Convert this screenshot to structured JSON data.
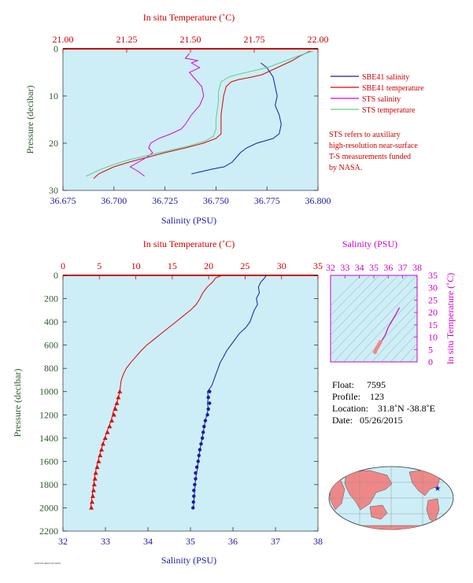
{
  "colors": {
    "plot_bg": "#cdeef7",
    "sbe_salinity": "#1a1aa6",
    "sbe_temperature": "#e00000",
    "sts_salinity": "#dd00dd",
    "sts_temperature": "#66cc88",
    "axis_red": "#cc0000",
    "axis_blue": "#1a1aa6",
    "axis_magenta": "#cc00cc",
    "axis_green": "#2d5a2d"
  },
  "top_panel": {
    "temp_axis_title": "In situ Temperature (˚C)",
    "salinity_axis_title": "Salinity (PSU)",
    "pressure_axis_title": "Pressure (decibar)"
  },
  "legend": {
    "items": [
      {
        "label": "SBE41 salinity",
        "color_key": "sbe_salinity"
      },
      {
        "label": "SBE41 temperature",
        "color_key": "sbe_temperature"
      },
      {
        "label": "STS salinity",
        "color_key": "sts_salinity"
      },
      {
        "label": "STS temperature",
        "color_key": "sts_temperature"
      }
    ],
    "note_lines": [
      "STS refers to auxiliary",
      "high-resolution near-surface",
      "T-S measurements funded",
      "by NASA."
    ]
  },
  "bottom_panel": {
    "temp_axis_title": "In situ Temperature (˚C)",
    "salinity_axis_title": "Salinity (PSU)",
    "pressure_axis_title": "Pressure (decibar)"
  },
  "ts_panel": {
    "salinity_axis_title": "Salinity (PSU)",
    "temp_axis_title": "In situ Temperature (˚C)"
  },
  "info": {
    "float_label": "Float:",
    "float_value": "7595",
    "profile_label": "Profile:",
    "profile_value": "123",
    "location_label": "Location:",
    "location_value": "31.8˚N  -38.8˚E",
    "date_label": "Date:",
    "date_value": "05/26/2015"
  },
  "footer_text": "POSTSCRIPT ID 6508",
  "chart_data": [
    {
      "type": "line",
      "id": "near-surface-profile",
      "ylabel": "Pressure (decibar)",
      "ylim": [
        30,
        0
      ],
      "y_ticks": [
        0,
        10,
        20,
        30
      ],
      "x_bottom": {
        "label": "Salinity (PSU)",
        "lim": [
          36.675,
          36.8
        ],
        "ticks": [
          "36.675",
          "36.700",
          "36.725",
          "36.750",
          "36.775",
          "36.800"
        ]
      },
      "x_top": {
        "label": "In situ Temperature (˚C)",
        "lim": [
          21.0,
          22.0
        ],
        "ticks": [
          "21.00",
          "21.25",
          "21.50",
          "21.75",
          "22.00"
        ]
      },
      "series": [
        {
          "name": "SBE41 salinity",
          "axis": "salinity",
          "points": [
            [
              36.772,
              3
            ],
            [
              36.775,
              4
            ],
            [
              36.778,
              6
            ],
            [
              36.779,
              8
            ],
            [
              36.78,
              10
            ],
            [
              36.779,
              12
            ],
            [
              36.781,
              14
            ],
            [
              36.782,
              16
            ],
            [
              36.781,
              18
            ],
            [
              36.778,
              19
            ],
            [
              36.77,
              20
            ],
            [
              36.765,
              21
            ],
            [
              36.762,
              22
            ],
            [
              36.76,
              23
            ],
            [
              36.758,
              24
            ],
            [
              36.754,
              25
            ],
            [
              36.748,
              25.5
            ],
            [
              36.743,
              26
            ],
            [
              36.74,
              26.3
            ],
            [
              36.738,
              26.5
            ]
          ]
        },
        {
          "name": "SBE41 temperature",
          "axis": "temperature",
          "points": [
            [
              21.97,
              0.5
            ],
            [
              21.93,
              1.5
            ],
            [
              21.9,
              2.5
            ],
            [
              21.86,
              3.5
            ],
            [
              21.82,
              4.5
            ],
            [
              21.78,
              5.5
            ],
            [
              21.74,
              6
            ],
            [
              21.69,
              6.5
            ],
            [
              21.66,
              7
            ],
            [
              21.64,
              8
            ],
            [
              21.63,
              10
            ],
            [
              21.625,
              12
            ],
            [
              21.62,
              14
            ],
            [
              21.62,
              16
            ],
            [
              21.62,
              18
            ],
            [
              21.6,
              19
            ],
            [
              21.55,
              20
            ],
            [
              21.48,
              21
            ],
            [
              21.4,
              22
            ],
            [
              21.33,
              23
            ],
            [
              21.26,
              24
            ],
            [
              21.2,
              25
            ],
            [
              21.16,
              26
            ],
            [
              21.14,
              26.5
            ],
            [
              21.12,
              27.5
            ]
          ]
        },
        {
          "name": "STS salinity",
          "axis": "salinity",
          "points": [
            [
              36.737,
              1
            ],
            [
              36.735,
              2
            ],
            [
              36.741,
              2.5
            ],
            [
              36.738,
              3
            ],
            [
              36.742,
              4
            ],
            [
              36.737,
              5
            ],
            [
              36.739,
              6
            ],
            [
              36.741,
              7
            ],
            [
              36.743,
              8
            ],
            [
              36.744,
              10
            ],
            [
              36.742,
              12
            ],
            [
              36.738,
              14
            ],
            [
              36.735,
              16
            ],
            [
              36.733,
              17
            ],
            [
              36.728,
              18
            ],
            [
              36.722,
              19
            ],
            [
              36.718,
              20
            ],
            [
              36.717,
              21
            ],
            [
              36.719,
              22
            ],
            [
              36.716,
              23
            ],
            [
              36.712,
              24
            ],
            [
              36.708,
              25
            ],
            [
              36.712,
              26
            ],
            [
              36.715,
              27
            ]
          ]
        },
        {
          "name": "STS temperature",
          "axis": "temperature",
          "points": [
            [
              21.98,
              0.5
            ],
            [
              21.95,
              1
            ],
            [
              21.9,
              2
            ],
            [
              21.85,
              3
            ],
            [
              21.8,
              4
            ],
            [
              21.76,
              4.5
            ],
            [
              21.72,
              5
            ],
            [
              21.68,
              5.5
            ],
            [
              21.65,
              6
            ],
            [
              21.62,
              7
            ],
            [
              21.61,
              9
            ],
            [
              21.61,
              11
            ],
            [
              21.605,
              13
            ],
            [
              21.6,
              15
            ],
            [
              21.6,
              17
            ],
            [
              21.59,
              18.5
            ],
            [
              21.56,
              19.5
            ],
            [
              21.5,
              20.5
            ],
            [
              21.42,
              21.5
            ],
            [
              21.34,
              22.5
            ],
            [
              21.26,
              23.5
            ],
            [
              21.2,
              24.5
            ],
            [
              21.15,
              25.5
            ],
            [
              21.11,
              26.5
            ],
            [
              21.09,
              27
            ]
          ]
        }
      ]
    },
    {
      "type": "line",
      "id": "full-profile",
      "ylabel": "Pressure (decibar)",
      "ylim": [
        2200,
        0
      ],
      "y_ticks": [
        0,
        200,
        400,
        600,
        800,
        1000,
        1200,
        1400,
        1600,
        1800,
        2000,
        2200
      ],
      "x_bottom": {
        "label": "Salinity (PSU)",
        "lim": [
          32,
          38
        ],
        "ticks": [
          "32",
          "33",
          "34",
          "35",
          "36",
          "37",
          "38"
        ]
      },
      "x_top": {
        "label": "In situ Temperature (˚C)",
        "lim": [
          0,
          35
        ],
        "ticks": [
          "0",
          "5",
          "10",
          "15",
          "20",
          "25",
          "30",
          "35"
        ]
      },
      "series": [
        {
          "name": "SBE41 salinity",
          "axis": "salinity",
          "points": [
            [
              36.78,
              0
            ],
            [
              36.75,
              20
            ],
            [
              36.65,
              60
            ],
            [
              36.6,
              100
            ],
            [
              36.62,
              150
            ],
            [
              36.55,
              200
            ],
            [
              36.58,
              250
            ],
            [
              36.5,
              300
            ],
            [
              36.45,
              350
            ],
            [
              36.4,
              400
            ],
            [
              36.3,
              450
            ],
            [
              36.15,
              500
            ],
            [
              36.05,
              550
            ],
            [
              35.95,
              600
            ],
            [
              35.85,
              650
            ],
            [
              35.78,
              700
            ],
            [
              35.7,
              750
            ],
            [
              35.65,
              800
            ],
            [
              35.6,
              850
            ],
            [
              35.5,
              950
            ],
            [
              35.4,
              1000
            ],
            [
              35.42,
              1050
            ],
            [
              35.4,
              1100
            ],
            [
              35.42,
              1150
            ],
            [
              35.35,
              1250
            ],
            [
              35.3,
              1350
            ],
            [
              35.25,
              1450
            ],
            [
              35.2,
              1550
            ],
            [
              35.17,
              1650
            ],
            [
              35.12,
              1750
            ],
            [
              35.1,
              1850
            ],
            [
              35.08,
              1950
            ],
            [
              35.07,
              2000
            ]
          ]
        },
        {
          "name": "SBE41 temperature",
          "axis": "temperature",
          "points": [
            [
              21.9,
              0
            ],
            [
              21.0,
              20
            ],
            [
              20.5,
              60
            ],
            [
              19.8,
              100
            ],
            [
              19.2,
              150
            ],
            [
              18.8,
              200
            ],
            [
              18.3,
              250
            ],
            [
              17.5,
              300
            ],
            [
              16.5,
              350
            ],
            [
              15.5,
              400
            ],
            [
              14.5,
              450
            ],
            [
              13.5,
              500
            ],
            [
              12.5,
              550
            ],
            [
              11.5,
              600
            ],
            [
              10.7,
              650
            ],
            [
              10.0,
              700
            ],
            [
              9.3,
              750
            ],
            [
              8.7,
              800
            ],
            [
              8.3,
              850
            ],
            [
              8.0,
              900
            ],
            [
              7.9,
              950
            ],
            [
              7.8,
              1000
            ],
            [
              7.6,
              1050
            ],
            [
              7.4,
              1100
            ],
            [
              7.0,
              1150
            ],
            [
              6.6,
              1250
            ],
            [
              6.0,
              1350
            ],
            [
              5.5,
              1450
            ],
            [
              5.0,
              1550
            ],
            [
              4.6,
              1650
            ],
            [
              4.3,
              1750
            ],
            [
              4.1,
              1850
            ],
            [
              3.9,
              1950
            ],
            [
              3.8,
              2000
            ]
          ]
        }
      ],
      "markers": {
        "salinity": [
          [
            35.45,
            1000
          ],
          [
            35.42,
            1050
          ],
          [
            35.45,
            1100
          ],
          [
            35.42,
            1150
          ],
          [
            35.4,
            1200
          ],
          [
            35.35,
            1250
          ],
          [
            35.32,
            1300
          ],
          [
            35.3,
            1350
          ],
          [
            35.28,
            1400
          ],
          [
            35.25,
            1450
          ],
          [
            35.22,
            1500
          ],
          [
            35.2,
            1550
          ],
          [
            35.18,
            1600
          ],
          [
            35.15,
            1650
          ],
          [
            35.12,
            1700
          ],
          [
            35.12,
            1750
          ],
          [
            35.1,
            1800
          ],
          [
            35.08,
            1850
          ],
          [
            35.08,
            1900
          ],
          [
            35.07,
            1950
          ],
          [
            35.06,
            2000
          ]
        ],
        "temperature": [
          [
            7.8,
            1000
          ],
          [
            7.6,
            1050
          ],
          [
            7.4,
            1100
          ],
          [
            7.2,
            1150
          ],
          [
            7.0,
            1200
          ],
          [
            6.7,
            1250
          ],
          [
            6.4,
            1300
          ],
          [
            6.1,
            1350
          ],
          [
            5.8,
            1400
          ],
          [
            5.5,
            1450
          ],
          [
            5.3,
            1500
          ],
          [
            5.1,
            1550
          ],
          [
            4.9,
            1600
          ],
          [
            4.7,
            1650
          ],
          [
            4.5,
            1700
          ],
          [
            4.4,
            1750
          ],
          [
            4.3,
            1800
          ],
          [
            4.2,
            1850
          ],
          [
            4.1,
            1900
          ],
          [
            4.0,
            1950
          ],
          [
            3.9,
            2000
          ]
        ]
      }
    },
    {
      "type": "scatter",
      "id": "ts-diagram",
      "x": {
        "label": "Salinity (PSU)",
        "lim": [
          32,
          38
        ],
        "ticks": [
          "32",
          "33",
          "34",
          "35",
          "36",
          "37",
          "38"
        ]
      },
      "y": {
        "label": "In situ Temperature (˚C)",
        "lim": [
          0,
          35
        ],
        "ticks": [
          "0",
          "5",
          "10",
          "15",
          "20",
          "25",
          "30",
          "35"
        ]
      },
      "series": [
        {
          "name": "profile",
          "points": [
            [
              36.78,
              22
            ],
            [
              36.5,
              19
            ],
            [
              36.2,
              16
            ],
            [
              36.0,
              14
            ],
            [
              35.8,
              11
            ],
            [
              35.6,
              9
            ],
            [
              35.45,
              8
            ],
            [
              35.35,
              7
            ],
            [
              35.25,
              6
            ],
            [
              35.15,
              5
            ],
            [
              35.08,
              4
            ]
          ]
        }
      ]
    }
  ]
}
